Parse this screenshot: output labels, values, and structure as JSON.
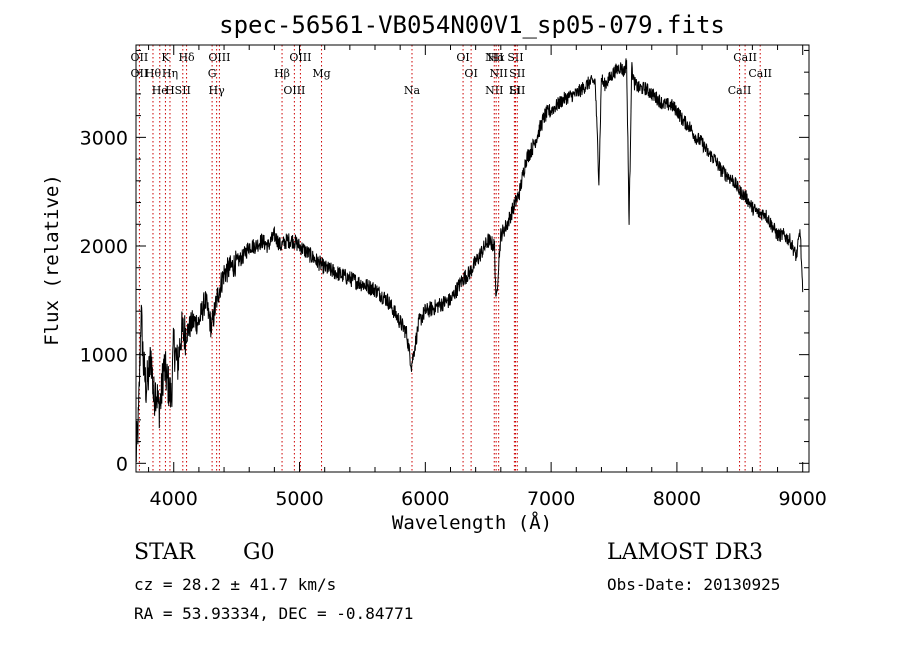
{
  "chart_data": {
    "type": "line",
    "title": "spec-56561-VB054N00V1_sp05-079.fits",
    "xlabel": "Wavelength (Å)",
    "ylabel": "Flux (relative)",
    "xlim": [
      3700,
      9050
    ],
    "ylim": [
      -80,
      3850
    ],
    "xticks": [
      4000,
      5000,
      6000,
      7000,
      8000,
      9000
    ],
    "xtick_labels": [
      "4000",
      "5000",
      "6000",
      "7000",
      "8000",
      "9000"
    ],
    "yticks": [
      0,
      1000,
      2000,
      3000
    ],
    "ytick_labels": [
      "0",
      "1000",
      "2000",
      "3000"
    ],
    "series": [
      {
        "name": "flux",
        "x": [
          3700,
          3720,
          3740,
          3760,
          3780,
          3800,
          3820,
          3840,
          3860,
          3880,
          3900,
          3920,
          3950,
          3980,
          4000,
          4030,
          4060,
          4100,
          4150,
          4200,
          4250,
          4300,
          4350,
          4400,
          4450,
          4500,
          4550,
          4600,
          4650,
          4700,
          4750,
          4800,
          4850,
          4900,
          4950,
          5000,
          5050,
          5100,
          5150,
          5200,
          5300,
          5400,
          5500,
          5600,
          5700,
          5800,
          5850,
          5890,
          5920,
          5950,
          6000,
          6050,
          6100,
          6150,
          6200,
          6250,
          6300,
          6350,
          6400,
          6450,
          6500,
          6550,
          6563,
          6580,
          6600,
          6650,
          6700,
          6750,
          6800,
          6850,
          6900,
          6950,
          7000,
          7050,
          7100,
          7150,
          7200,
          7250,
          7300,
          7350,
          7380,
          7400,
          7420,
          7450,
          7500,
          7550,
          7580,
          7600,
          7620,
          7640,
          7660,
          7700,
          7750,
          7800,
          7850,
          7900,
          7950,
          8000,
          8050,
          8100,
          8150,
          8200,
          8250,
          8300,
          8350,
          8400,
          8450,
          8500,
          8550,
          8600,
          8650,
          8700,
          8750,
          8800,
          8850,
          8900,
          8950,
          8980,
          9000
        ],
        "y": [
          50,
          400,
          1400,
          900,
          700,
          800,
          1000,
          600,
          700,
          500,
          600,
          900,
          750,
          600,
          1100,
          900,
          1200,
          1200,
          1300,
          1300,
          1500,
          1250,
          1550,
          1750,
          1800,
          1850,
          1900,
          2000,
          2000,
          2050,
          2000,
          2100,
          2000,
          2050,
          2050,
          2000,
          1950,
          1900,
          1850,
          1800,
          1750,
          1700,
          1650,
          1600,
          1500,
          1300,
          1200,
          900,
          1100,
          1300,
          1400,
          1420,
          1450,
          1480,
          1500,
          1600,
          1700,
          1750,
          1850,
          1950,
          2050,
          2000,
          1450,
          1800,
          2100,
          2200,
          2350,
          2500,
          2800,
          2900,
          3050,
          3200,
          3250,
          3300,
          3350,
          3380,
          3400,
          3450,
          3500,
          3520,
          2600,
          3550,
          3480,
          3520,
          3600,
          3650,
          3600,
          3700,
          2200,
          3650,
          3500,
          3450,
          3450,
          3400,
          3350,
          3300,
          3300,
          3250,
          3150,
          3100,
          3000,
          2950,
          2850,
          2800,
          2700,
          2650,
          2600,
          2500,
          2450,
          2350,
          2300,
          2300,
          2200,
          2100,
          2100,
          2050,
          1900,
          2150,
          1550
        ]
      }
    ],
    "line_markers": [
      {
        "x": 3727,
        "labels": [
          "OII",
          "OII"
        ]
      },
      {
        "x": 3835,
        "labels": [
          "Hθ"
        ]
      },
      {
        "x": 3889,
        "labels": [
          "He"
        ]
      },
      {
        "x": 3934,
        "labels": [
          "K"
        ]
      },
      {
        "x": 3970,
        "labels": [
          "Hη",
          "H"
        ]
      },
      {
        "x": 4072,
        "labels": [
          "SII"
        ]
      },
      {
        "x": 4102,
        "labels": [
          "Hδ"
        ]
      },
      {
        "x": 4305,
        "labels": [
          "G"
        ]
      },
      {
        "x": 4341,
        "labels": [
          "Hγ"
        ]
      },
      {
        "x": 4363,
        "labels": [
          "OIII"
        ]
      },
      {
        "x": 4861,
        "labels": [
          "Hβ"
        ]
      },
      {
        "x": 4959,
        "labels": [
          "OIII"
        ]
      },
      {
        "x": 5007,
        "labels": [
          "OIII"
        ]
      },
      {
        "x": 5175,
        "labels": [
          "Mg"
        ]
      },
      {
        "x": 5894,
        "labels": [
          "Na"
        ]
      },
      {
        "x": 6300,
        "labels": [
          "OI"
        ]
      },
      {
        "x": 6364,
        "labels": [
          "OI"
        ]
      },
      {
        "x": 6548,
        "labels": [
          "NII",
          "NII"
        ]
      },
      {
        "x": 6563,
        "labels": [
          "Hα"
        ]
      },
      {
        "x": 6583,
        "labels": [
          "NII"
        ]
      },
      {
        "x": 6708,
        "labels": [
          "Li"
        ]
      },
      {
        "x": 6717,
        "labels": [
          "SII"
        ]
      },
      {
        "x": 6731,
        "labels": [
          "SII",
          "SII"
        ]
      },
      {
        "x": 8498,
        "labels": [
          "CaII"
        ]
      },
      {
        "x": 8542,
        "labels": [
          "CaII"
        ]
      },
      {
        "x": 8662,
        "labels": [
          "CaII"
        ]
      }
    ],
    "colors": {
      "spectrum": "#000000",
      "markers": "#cc0000",
      "axes": "#000000"
    }
  },
  "info": {
    "object_class": "STAR",
    "subclass": "G0",
    "survey": "LAMOST DR3",
    "redshift": "cz = 28.2 ± 41.7 km/s",
    "obs_date": "Obs-Date: 20130925",
    "coords": "RA =  53.93334, DEC =  -0.84771"
  }
}
